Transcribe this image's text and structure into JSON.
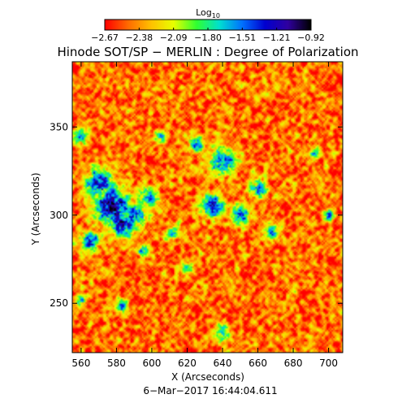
{
  "chart_data": {
    "type": "heatmap",
    "title": "Hinode SOT/SP − MERLIN : Degree of Polarization",
    "xlabel": "X (Arcseconds)",
    "ylabel": "Y (Arcseconds)",
    "date": "6−Mar−2017 16:44:04.611",
    "xlim": [
      555,
      708
    ],
    "ylim": [
      222,
      387
    ],
    "x_ticks": [
      560,
      580,
      600,
      620,
      640,
      660,
      680,
      700
    ],
    "y_ticks": [
      250,
      300,
      350
    ],
    "colorbar": {
      "label_base": "Log",
      "label_sub": "10",
      "tick_labels": [
        "−2.67",
        "−2.38",
        "−2.09",
        "−1.80",
        "−1.51",
        "−1.21",
        "−0.92"
      ],
      "range": [
        -2.67,
        -0.92
      ],
      "colors": [
        "#ff0000",
        "#ff6a00",
        "#ffc000",
        "#e8ff00",
        "#30ff30",
        "#00e0d0",
        "#0070ff",
        "#0000d0",
        "#3000a0",
        "#000000"
      ]
    },
    "field": {
      "background": -2.45,
      "features": [
        {
          "x": 578,
          "y": 305,
          "r": 9,
          "peak": -1.05
        },
        {
          "x": 570,
          "y": 318,
          "r": 7,
          "peak": -1.25
        },
        {
          "x": 583,
          "y": 295,
          "r": 6,
          "peak": -1.1
        },
        {
          "x": 590,
          "y": 300,
          "r": 6,
          "peak": -1.35
        },
        {
          "x": 565,
          "y": 285,
          "r": 5,
          "peak": -1.45
        },
        {
          "x": 598,
          "y": 310,
          "r": 5,
          "peak": -1.55
        },
        {
          "x": 560,
          "y": 345,
          "r": 4,
          "peak": -1.6
        },
        {
          "x": 640,
          "y": 330,
          "r": 7,
          "peak": -1.4
        },
        {
          "x": 635,
          "y": 305,
          "r": 6,
          "peak": -1.35
        },
        {
          "x": 650,
          "y": 300,
          "r": 5,
          "peak": -1.45
        },
        {
          "x": 625,
          "y": 340,
          "r": 4,
          "peak": -1.55
        },
        {
          "x": 660,
          "y": 315,
          "r": 5,
          "peak": -1.6
        },
        {
          "x": 668,
          "y": 290,
          "r": 4,
          "peak": -1.55
        },
        {
          "x": 612,
          "y": 290,
          "r": 4,
          "peak": -1.65
        },
        {
          "x": 595,
          "y": 280,
          "r": 3,
          "peak": -1.5
        },
        {
          "x": 583,
          "y": 248,
          "r": 3,
          "peak": -1.55
        },
        {
          "x": 560,
          "y": 252,
          "r": 3,
          "peak": -1.6
        },
        {
          "x": 640,
          "y": 233,
          "r": 4,
          "peak": -1.7
        },
        {
          "x": 700,
          "y": 300,
          "r": 3,
          "peak": -1.5
        },
        {
          "x": 692,
          "y": 335,
          "r": 3,
          "peak": -1.7
        },
        {
          "x": 620,
          "y": 270,
          "r": 3,
          "peak": -1.75
        },
        {
          "x": 605,
          "y": 345,
          "r": 3,
          "peak": -1.7
        }
      ]
    }
  }
}
